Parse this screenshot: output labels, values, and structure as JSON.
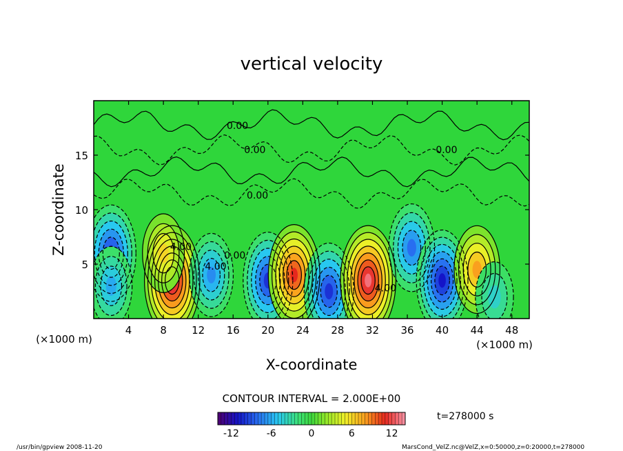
{
  "chart_data": {
    "type": "heatmap",
    "title": "vertical velocity",
    "xlabel": "X-coordinate",
    "ylabel": "Z-coordinate",
    "x_unit_left": "(×1000 m)",
    "x_unit_right": "(×1000 m)",
    "xlim": [
      0,
      50
    ],
    "ylim": [
      0,
      20
    ],
    "xticks": [
      4,
      8,
      12,
      16,
      20,
      24,
      28,
      32,
      36,
      40,
      44,
      48
    ],
    "yticks": [
      5,
      10,
      15
    ],
    "contour_interval_text": "CONTOUR INTERVAL = 2.000E+00",
    "contour_labels": [
      {
        "text": "0.00",
        "x": 16.5,
        "z": 17.4
      },
      {
        "text": "0.00",
        "x": 18.5,
        "z": 15.2
      },
      {
        "text": "0.00",
        "x": 18.8,
        "z": 11.0
      },
      {
        "text": "0.00",
        "x": 40.5,
        "z": 15.2
      },
      {
        "text": "0.00",
        "x": 16.2,
        "z": 5.5
      },
      {
        "text": "4.00",
        "x": 10.0,
        "z": 6.3
      },
      {
        "text": "4.00",
        "x": 14.0,
        "z": 4.5
      },
      {
        "text": "4.00",
        "x": 33.5,
        "z": 2.5
      }
    ],
    "cells": [
      {
        "x": 2.0,
        "z": 6.0,
        "w": -10
      },
      {
        "x": 2.0,
        "z": 3.0,
        "w": -6
      },
      {
        "x": 9.0,
        "z": 3.5,
        "w": 13
      },
      {
        "x": 8.0,
        "z": 6.0,
        "w": 6
      },
      {
        "x": 13.5,
        "z": 4.0,
        "w": -7
      },
      {
        "x": 20.0,
        "z": 3.5,
        "w": -10
      },
      {
        "x": 23.0,
        "z": 4.0,
        "w": 11
      },
      {
        "x": 27.0,
        "z": 2.5,
        "w": -10
      },
      {
        "x": 31.5,
        "z": 3.5,
        "w": 13
      },
      {
        "x": 36.5,
        "z": 6.5,
        "w": -8
      },
      {
        "x": 40.0,
        "z": 3.5,
        "w": -11
      },
      {
        "x": 44.0,
        "z": 4.5,
        "w": 8
      },
      {
        "x": 46.0,
        "z": 2.0,
        "w": -4
      }
    ],
    "colorbar": {
      "min": -14,
      "max": 14,
      "ticks": [
        -12,
        -6,
        0,
        6,
        12
      ],
      "tick_labels": [
        "-12",
        "-6",
        "0",
        "6",
        "12"
      ]
    }
  },
  "time_label": "t=278000 s",
  "footer_left": "/usr/bin/gpview   2008-11-20",
  "footer_right": "MarsCond_VelZ.nc@VelZ,x=0:50000,z=0:20000,t=278000"
}
